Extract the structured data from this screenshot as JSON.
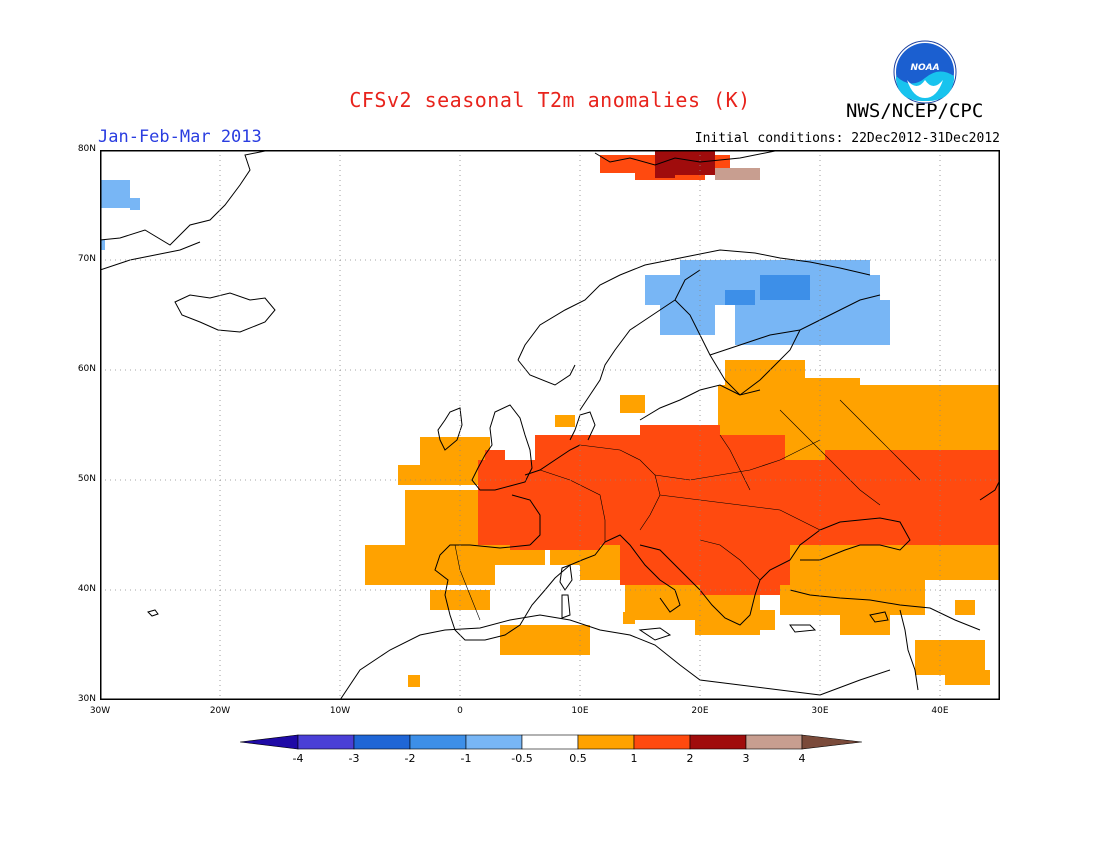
{
  "title": "CFSv2 seasonal T2m anomalies (K)",
  "agency": "NWS/NCEP/CPC",
  "logo_text": "NOAA",
  "period": "Jan-Feb-Mar 2013",
  "initial_conditions": "Initial conditions: 22Dec2012-31Dec2012",
  "lat_labels": [
    "80N",
    "70N",
    "60N",
    "50N",
    "40N",
    "30N"
  ],
  "lon_labels": [
    "30W",
    "20W",
    "10W",
    "0",
    "10E",
    "20E",
    "30E",
    "40E"
  ],
  "colorbar": {
    "labels": [
      "-4",
      "-3",
      "-2",
      "-1",
      "-0.5",
      "0.5",
      "1",
      "2",
      "3",
      "4"
    ],
    "colors": [
      "#1f0aa6",
      "#4a3fd6",
      "#1f66d6",
      "#3d8fe8",
      "#78b6f5",
      "#ffffff",
      "#ffa200",
      "#ff4a0f",
      "#a00c0c",
      "#c89e90",
      "#7a4a3a"
    ]
  }
}
